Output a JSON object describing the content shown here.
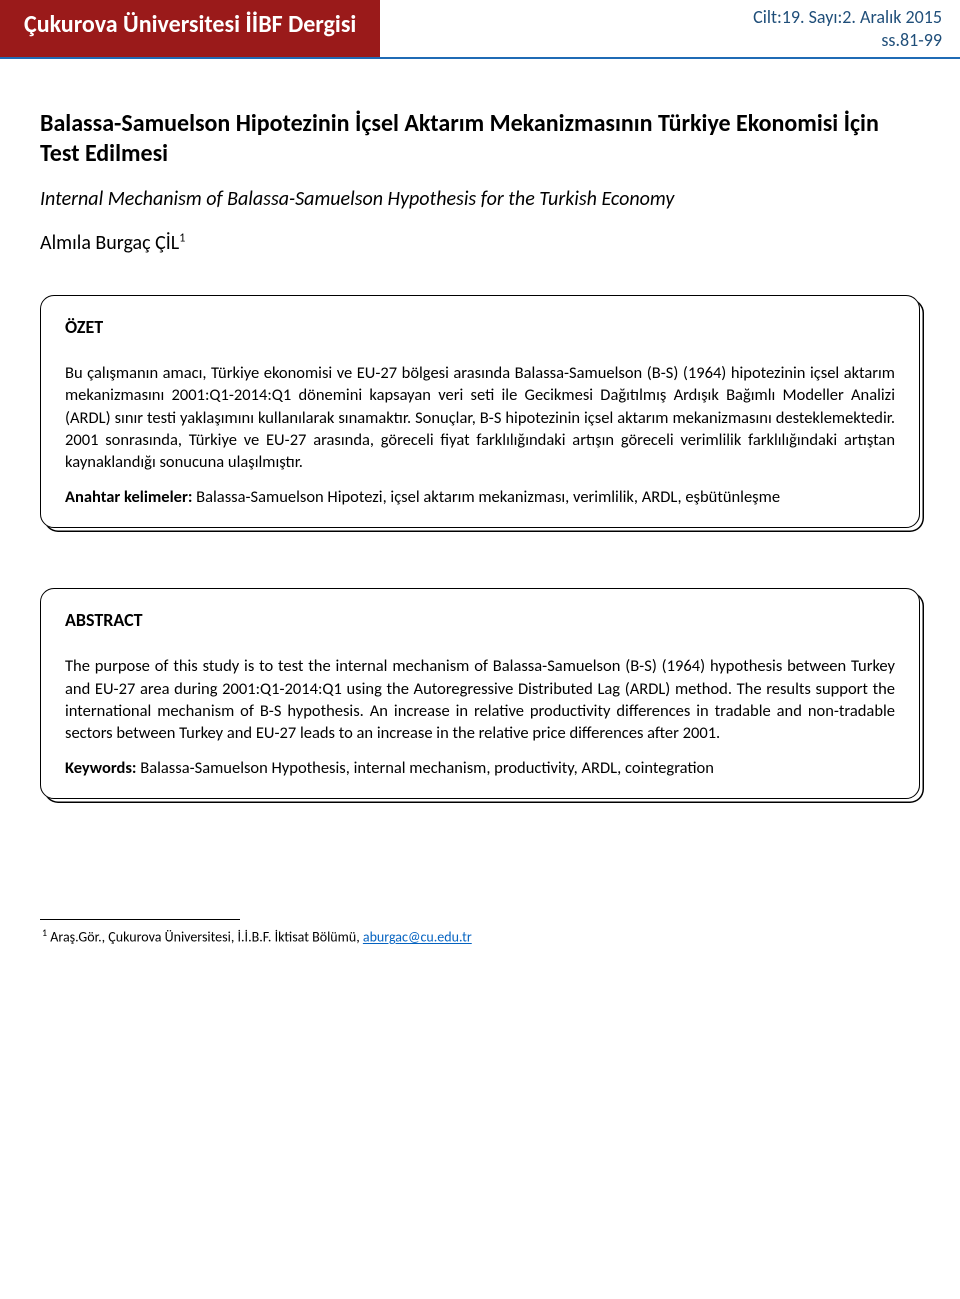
{
  "header": {
    "journal": "Çukurova Üniversitesi İİBF Dergisi",
    "issue_line1": "Cilt:19. Sayı:2. Aralık 2015",
    "issue_line2": "ss.81-99"
  },
  "article": {
    "title_tr": "Balassa-Samuelson Hipotezinin İçsel Aktarım Mekanizmasının Türkiye Ekonomisi İçin Test Edilmesi",
    "title_en": "Internal Mechanism of Balassa-Samuelson Hypothesis for the Turkish Economy",
    "author_name": "Almıla Burgaç ÇİL",
    "author_sup": "1"
  },
  "ozet": {
    "heading": "ÖZET",
    "body": "Bu çalışmanın amacı, Türkiye ekonomisi ve EU-27 bölgesi arasında Balassa-Samuelson (B-S) (1964) hipotezinin içsel aktarım mekanizmasını 2001:Q1-2014:Q1 dönemini kapsayan veri seti ile Gecikmesi Dağıtılmış Ardışık Bağımlı Modeller Analizi (ARDL) sınır testi yaklaşımını kullanılarak sınamaktır. Sonuçlar, B-S hipotezinin içsel aktarım mekanizmasını desteklemektedir. 2001 sonrasında, Türkiye ve EU-27 arasında, göreceli fiyat farklılığındaki artışın göreceli verimlilik farklılığındaki artıştan kaynaklandığı sonucuna ulaşılmıştır.",
    "keywords_label": "Anahtar kelimeler:",
    "keywords": " Balassa-Samuelson Hipotezi, içsel aktarım mekanizması, verimlilik, ARDL, eşbütünleşme"
  },
  "abstract": {
    "heading": "ABSTRACT",
    "body": "The purpose of this study is to test the internal mechanism of Balassa-Samuelson (B-S) (1964) hypothesis between Turkey and EU-27 area during 2001:Q1-2014:Q1 using the Autoregressive Distributed Lag (ARDL) method. The results support the international mechanism of B-S hypothesis. An increase in relative productivity differences in tradable and non-tradable sectors between Turkey and EU-27 leads to an increase in the relative price differences after 2001.",
    "keywords_label": "Keywords:",
    "keywords": " Balassa-Samuelson Hypothesis, internal mechanism, productivity, ARDL, cointegration"
  },
  "footnote": {
    "sup": "1",
    "text_before_email": " Araş.Gör., Çukurova Üniversitesi, İ.İ.B.F. İktisat Bölümü, ",
    "email": "aburgac@cu.edu.tr"
  },
  "colors": {
    "header_bg": "#9a1a1a",
    "header_text": "#ffffff",
    "issue_text": "#1f4e79",
    "border_bottom": "#1f6bb5",
    "email_link": "#0563c1",
    "page_bg": "#ffffff",
    "text": "#000000"
  },
  "typography": {
    "journal_fontsize_pt": 18,
    "issue_fontsize_pt": 13,
    "title_tr_fontsize_pt": 18,
    "title_en_fontsize_pt": 15,
    "body_fontsize_pt": 12,
    "footnote_fontsize_pt": 10
  }
}
